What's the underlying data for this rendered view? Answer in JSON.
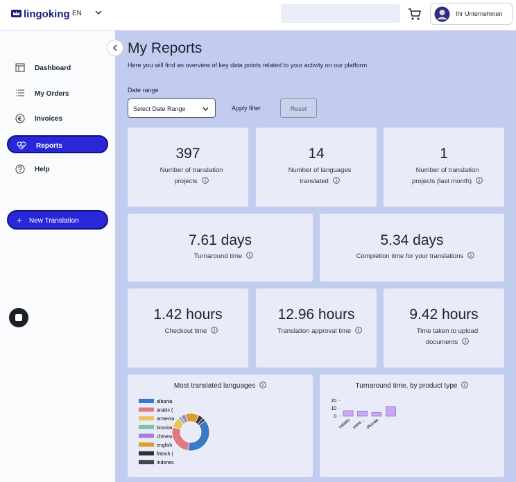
{
  "header": {
    "brand": "lingoking",
    "language": "EN",
    "account": "Ihr Unternehmen"
  },
  "sidebar": {
    "items": [
      "Dashboard",
      "My Orders",
      "Invoices",
      "Reports",
      "Help"
    ],
    "new_translation": "New Translation"
  },
  "page": {
    "title": "My Reports",
    "subtitle": "Here you will find an overview of key data points related to your activity on our platform",
    "date_range_label": "Date range",
    "date_select": "Select Date Range",
    "apply": "Apply filter",
    "reset": "Reset"
  },
  "stats": [
    {
      "value": "397",
      "label": "Number of translation projects"
    },
    {
      "value": "14",
      "label": "Number of languages translated"
    },
    {
      "value": "1",
      "label": "Number of translation projects (last month)"
    },
    {
      "value": "7.61 days",
      "label": "Turnaround time"
    },
    {
      "value": "5.34 days",
      "label": "Completion time for your translations"
    },
    {
      "value": "1.42 hours",
      "label": "Checkout time"
    },
    {
      "value": "12.96 hours",
      "label": "Translation approval time"
    },
    {
      "value": "9.42 hours",
      "label": "Time taken to upload documents"
    }
  ],
  "chart_data": [
    {
      "type": "pie",
      "title": "Most translated languages",
      "categories": [
        "albania",
        "arabic (",
        "armenia",
        "bosnian",
        "chinese",
        "english",
        "french (",
        "indones"
      ],
      "values": [
        38,
        27,
        9,
        3,
        4,
        12,
        4,
        3
      ],
      "colors": [
        "#3a78c8",
        "#df7a82",
        "#e8c45c",
        "#7fc1a2",
        "#a47fd8",
        "#e0992b",
        "#2f2f33",
        "#44464c"
      ]
    },
    {
      "type": "bar",
      "title": "Turnaround time, by product type",
      "categories": [
        "nslatio",
        "esse...",
        "-Runde",
        null
      ],
      "values": [
        7,
        6,
        5,
        12
      ],
      "color": "#c9a8f2",
      "ylim": [
        0,
        22
      ],
      "yticks": [
        0,
        10,
        20
      ]
    }
  ]
}
